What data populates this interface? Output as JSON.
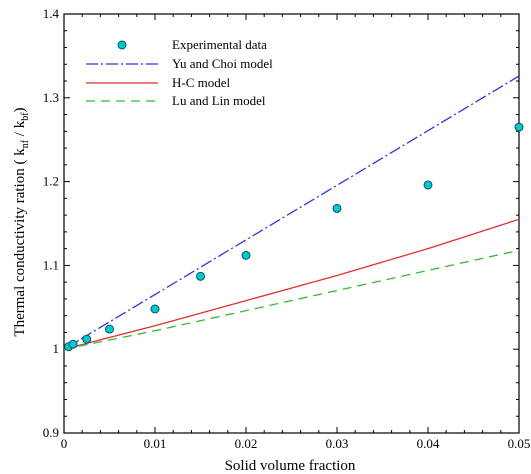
{
  "chart_data": {
    "type": "line",
    "title": "",
    "xlabel": "Solid volume fraction",
    "ylabel_main": "Thermal conductivity ration ( k",
    "ylabel_sub1": "nf",
    "ylabel_mid": " / k",
    "ylabel_sub2": "bf",
    "ylabel_end": ")",
    "xlim": [
      0,
      0.05
    ],
    "ylim": [
      0.9,
      1.4
    ],
    "xticks": [
      0,
      0.01,
      0.02,
      0.03,
      0.04,
      0.05
    ],
    "xtick_labels": [
      "0",
      "0.01",
      "0.02",
      "0.03",
      "0.04",
      "0.05"
    ],
    "yticks": [
      0.9,
      1.0,
      1.1,
      1.2,
      1.3,
      1.4
    ],
    "ytick_labels": [
      "0.9",
      "1",
      "1.1",
      "1.2",
      "1.3",
      "1.4"
    ],
    "grid": false,
    "legend_position": "top-left",
    "series": [
      {
        "name": "Experimental data",
        "kind": "scatter",
        "color": "#00c8d2",
        "x": [
          0.0005,
          0.001,
          0.0025,
          0.005,
          0.01,
          0.015,
          0.02,
          0.03,
          0.04,
          0.05
        ],
        "y": [
          1.003,
          1.006,
          1.012,
          1.024,
          1.048,
          1.087,
          1.112,
          1.168,
          1.196,
          1.265
        ]
      },
      {
        "name": "Yu and Choi model",
        "kind": "line",
        "color": "#3333dd",
        "dash": "dashdot",
        "x": [
          0,
          0.05
        ],
        "y": [
          1.0,
          1.326
        ]
      },
      {
        "name": "H-C model",
        "kind": "line",
        "color": "#e03030",
        "dash": "solid",
        "x": [
          0,
          0.01,
          0.02,
          0.03,
          0.04,
          0.05
        ],
        "y": [
          1.0,
          1.028,
          1.058,
          1.088,
          1.12,
          1.155
        ]
      },
      {
        "name": "Lu and Lin model",
        "kind": "line",
        "color": "#33bb33",
        "dash": "dashed",
        "x": [
          0,
          0.01,
          0.02,
          0.03,
          0.04,
          0.05
        ],
        "y": [
          1.0,
          1.022,
          1.046,
          1.07,
          1.094,
          1.118
        ]
      }
    ]
  }
}
